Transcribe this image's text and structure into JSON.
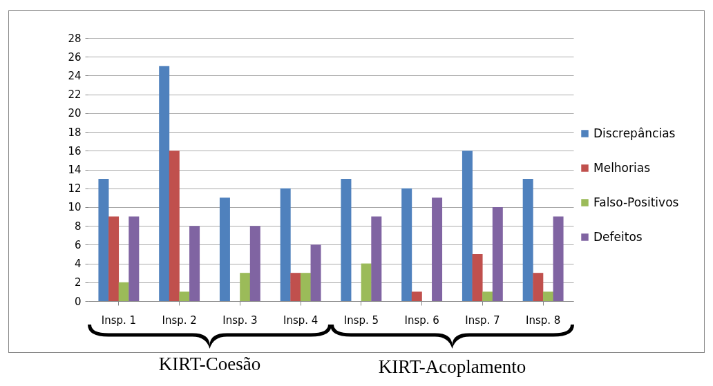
{
  "chart_data": {
    "type": "bar",
    "categories": [
      "Insp. 1",
      "Insp. 2",
      "Insp. 3",
      "Insp. 4",
      "Insp. 5",
      "Insp. 6",
      "Insp. 7",
      "Insp. 8"
    ],
    "series": [
      {
        "name": "Discrepâncias",
        "color": "#4f81bd",
        "values": [
          13,
          25,
          11,
          12,
          13,
          12,
          16,
          13
        ]
      },
      {
        "name": "Melhorias",
        "color": "#c0504d",
        "values": [
          9,
          16,
          0,
          3,
          0,
          1,
          5,
          3
        ]
      },
      {
        "name": "Falso-Positivos",
        "color": "#9bbb59",
        "values": [
          2,
          1,
          3,
          3,
          4,
          0,
          1,
          1
        ]
      },
      {
        "name": "Defeitos",
        "color": "#8064a2",
        "values": [
          9,
          8,
          8,
          6,
          9,
          11,
          10,
          9
        ]
      }
    ],
    "ylim": [
      0,
      28
    ],
    "yticks": [
      0,
      2,
      4,
      6,
      8,
      10,
      12,
      14,
      16,
      18,
      20,
      22,
      24,
      26,
      28
    ],
    "grid": "y",
    "legend": "right",
    "annotations": [
      "KIRT-Coesão",
      "KIRT-Acoplamento"
    ]
  }
}
